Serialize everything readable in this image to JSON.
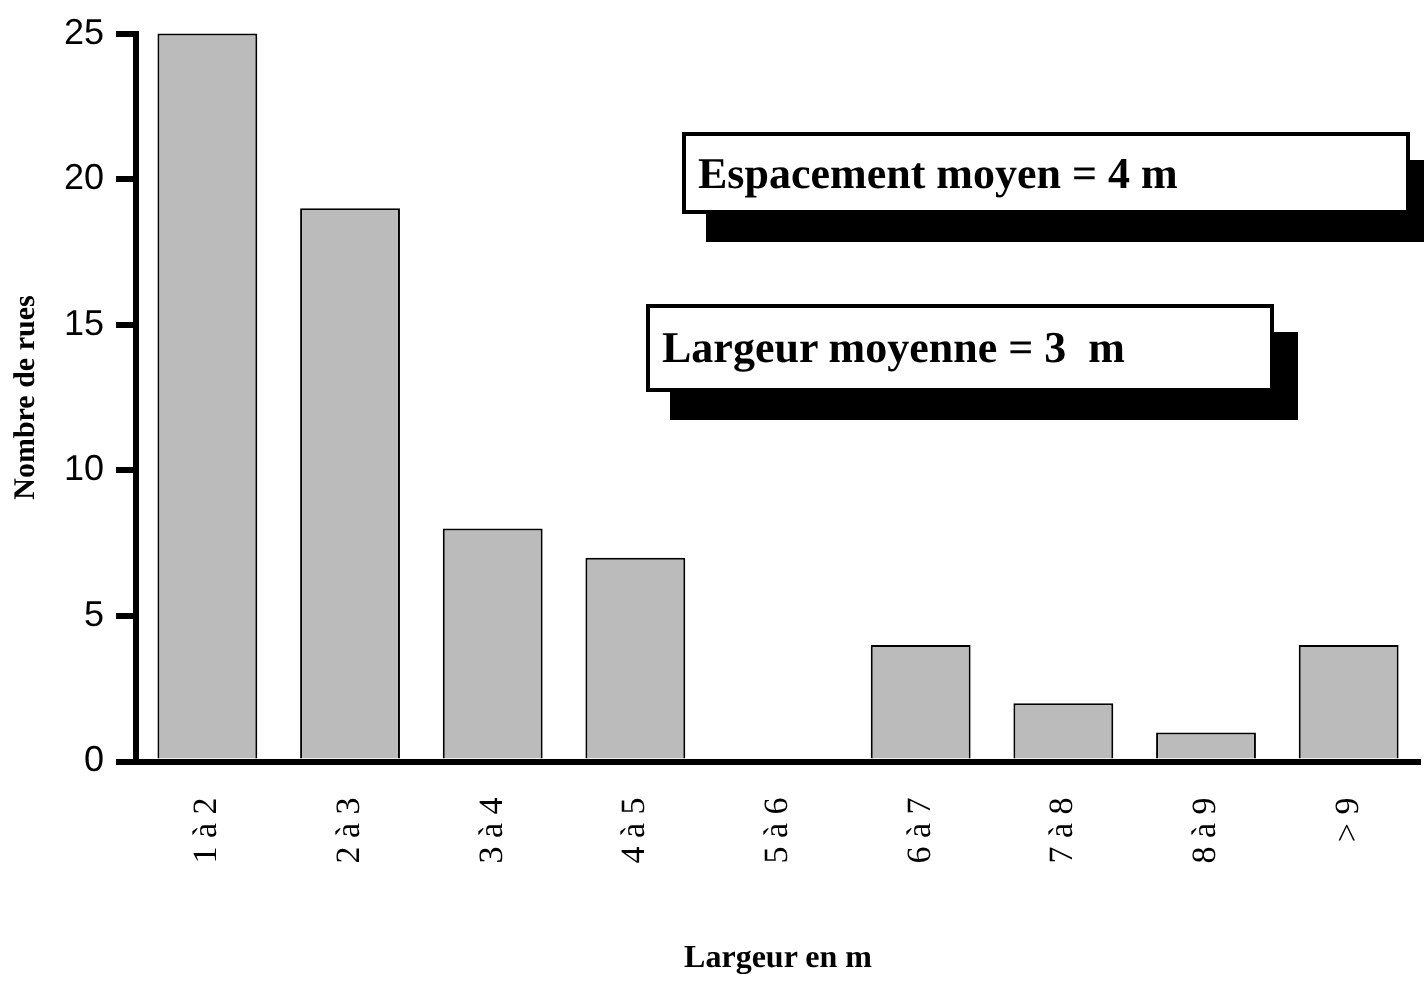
{
  "chart_data": {
    "type": "bar",
    "xlabel": "Largeur en m",
    "ylabel": "Nombre de rues",
    "categories": [
      "1 à 2",
      "2 à 3",
      "3 à 4",
      "4 à 5",
      "5 à 6",
      "6 à 7",
      "7 à 8",
      "8 à 9",
      "> 9"
    ],
    "values": [
      25,
      19,
      8,
      7,
      0,
      4,
      2,
      1,
      4
    ],
    "color": "#bbbbbb",
    "ylim": [
      0,
      25
    ],
    "yticks": [
      0,
      5,
      10,
      15,
      20,
      25
    ],
    "grid": false,
    "legend": false,
    "annotations": [
      "Espacement moyen = 4 m",
      "Largeur moyenne = 3  m"
    ]
  }
}
